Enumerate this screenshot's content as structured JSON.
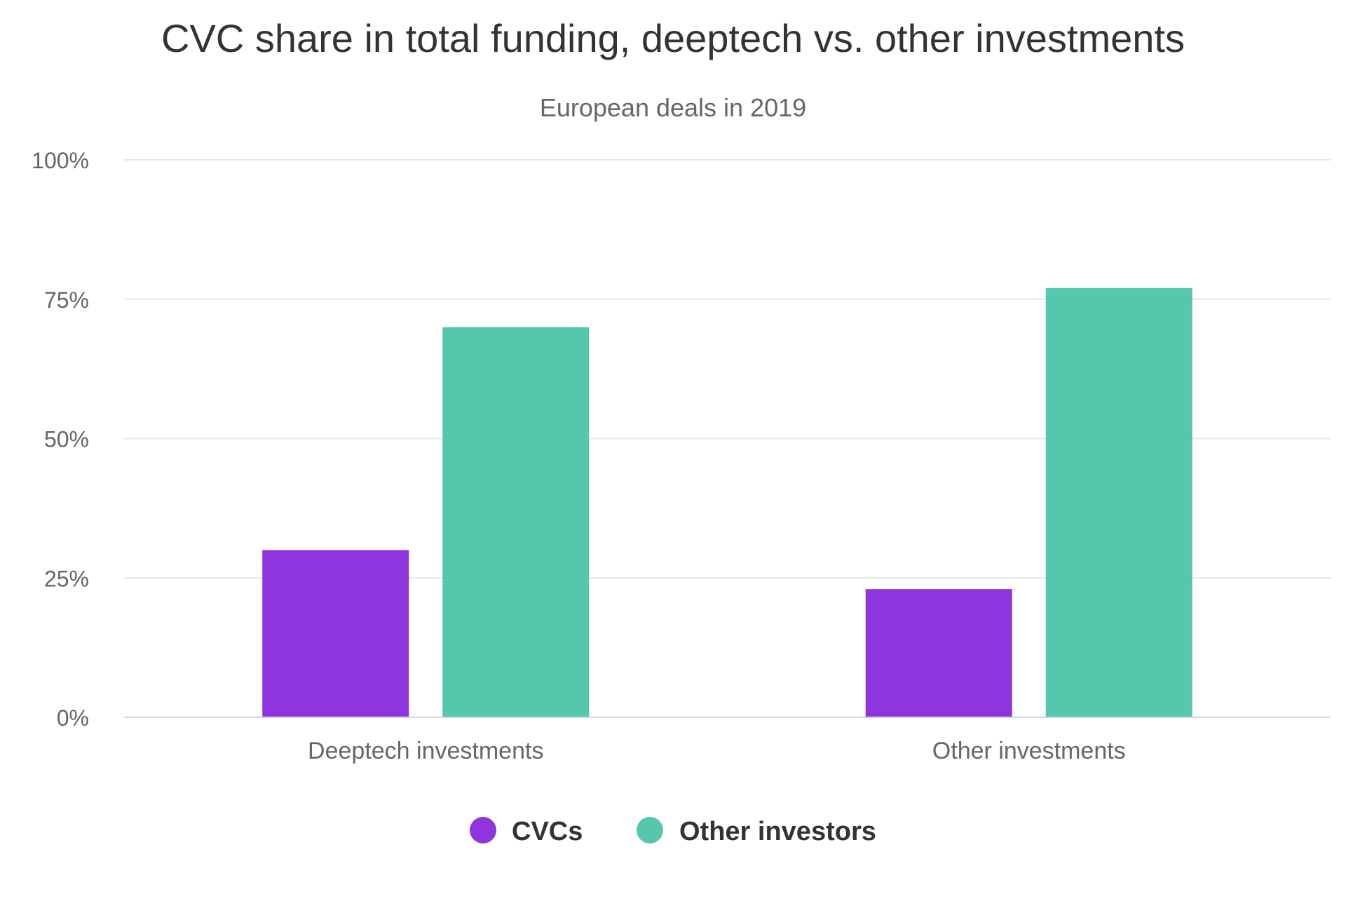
{
  "chart_data": {
    "type": "bar",
    "title": "CVC share in total funding, deeptech vs. other investments",
    "subtitle": "European deals in 2019",
    "categories": [
      "Deeptech investments",
      "Other investments"
    ],
    "series": [
      {
        "name": "CVCs",
        "color": "#8E35DE",
        "values": [
          30,
          23
        ]
      },
      {
        "name": "Other investors",
        "color": "#55C7AD",
        "values": [
          70,
          77
        ]
      }
    ],
    "ylim": [
      0,
      100
    ],
    "yticks": [
      0,
      25,
      50,
      75,
      100
    ],
    "ytick_labels": [
      "0%",
      "25%",
      "50%",
      "75%",
      "100%"
    ],
    "grid": true,
    "legend_placement": "bottom-center",
    "colors": {
      "text_dark": "#333333",
      "text_muted": "#666666",
      "gridline": "#E6E6E6",
      "baseline": "#CCD6EB"
    }
  }
}
